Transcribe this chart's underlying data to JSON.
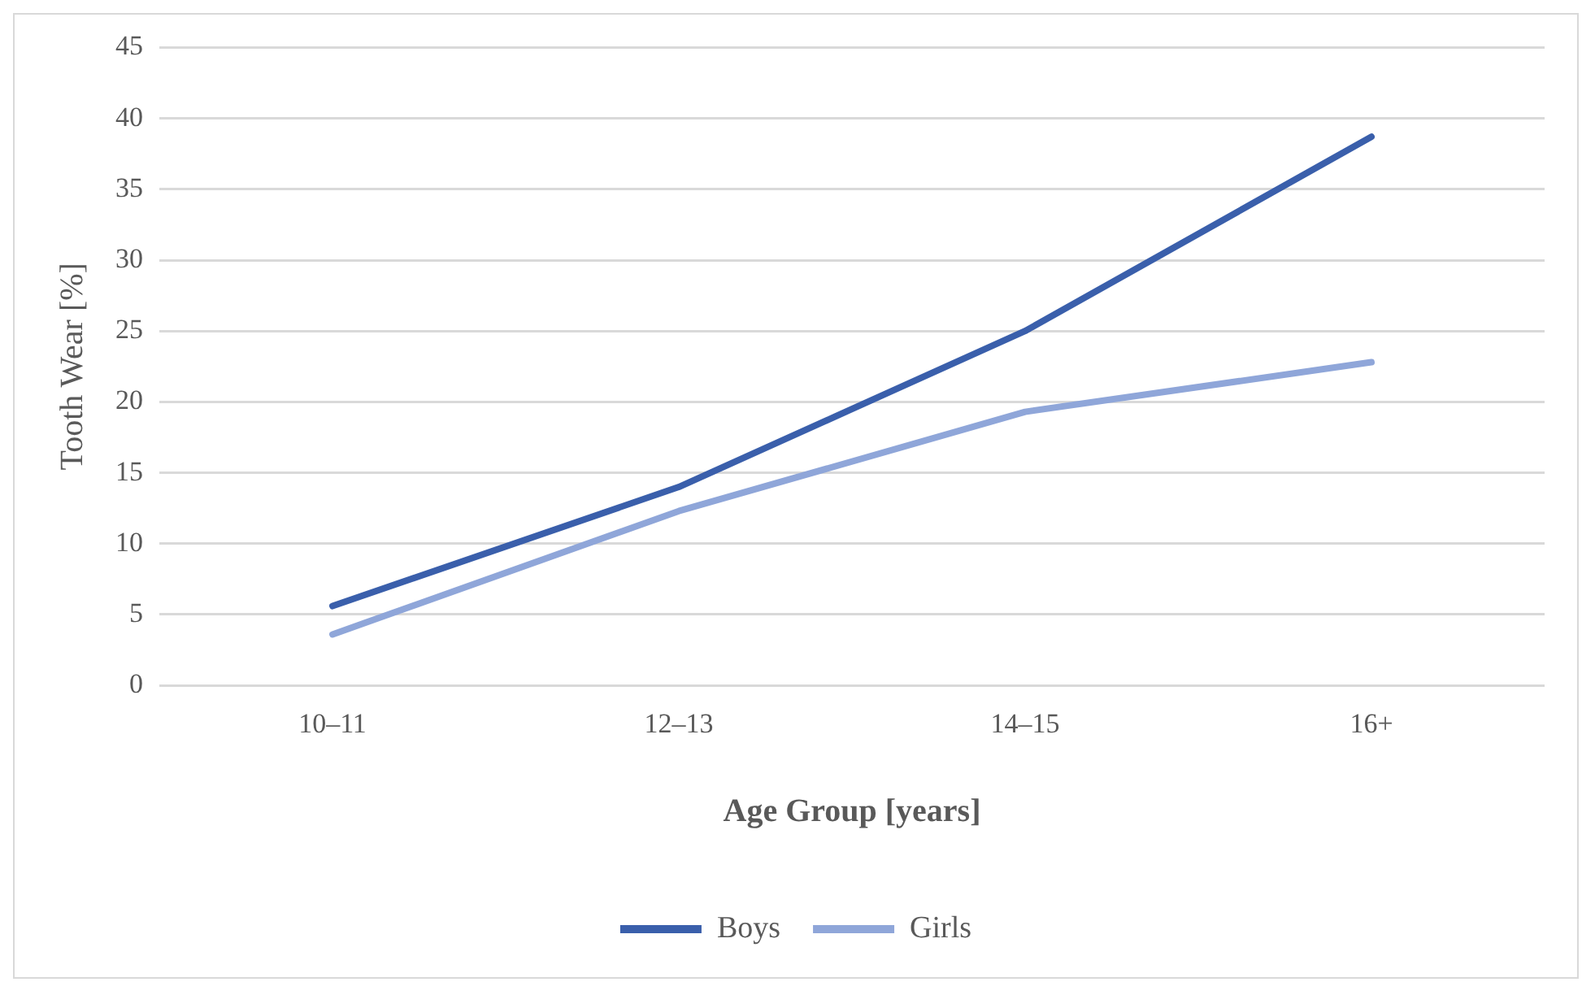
{
  "chart_data": {
    "type": "line",
    "xlabel": "Age Group [years]",
    "ylabel": "Tooth Wear [%]",
    "categories": [
      "10–11",
      "12–13",
      "14–15",
      "16+"
    ],
    "series": [
      {
        "name": "Boys",
        "color": "#3a5fab",
        "values": [
          5.6,
          14.0,
          25.0,
          38.7
        ]
      },
      {
        "name": "Girls",
        "color": "#8fa6d9",
        "values": [
          3.6,
          12.3,
          19.3,
          22.8
        ]
      }
    ],
    "ylim": [
      0,
      45
    ],
    "yticks": [
      0,
      5,
      10,
      15,
      20,
      25,
      30,
      35,
      40,
      45
    ],
    "grid": "y",
    "legend": "bottom",
    "marker": "none",
    "line_style": "solid"
  }
}
